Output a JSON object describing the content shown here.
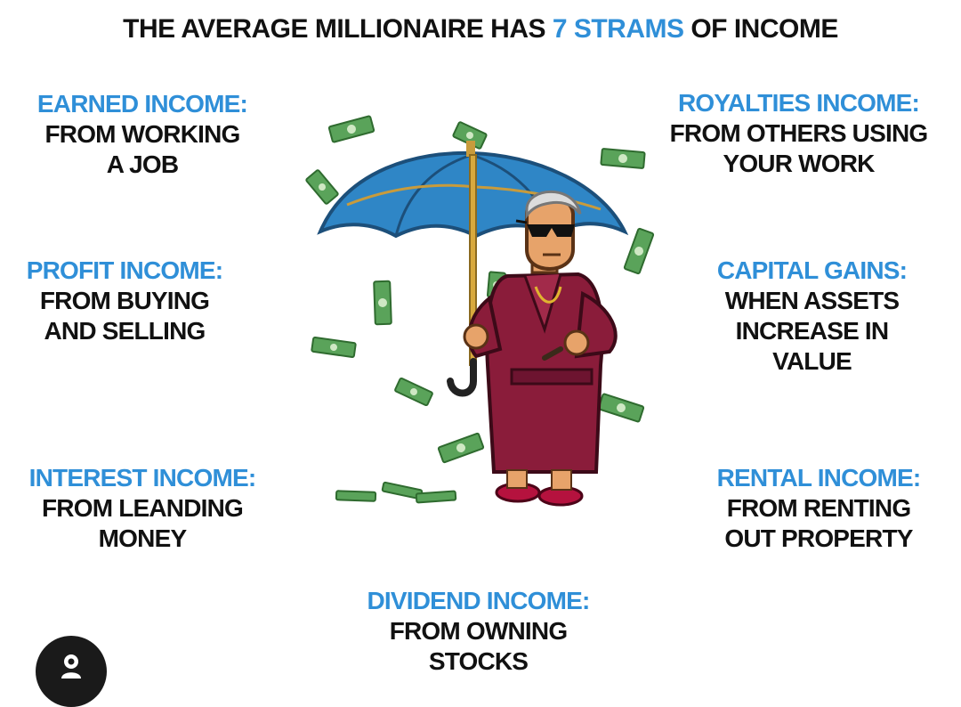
{
  "colors": {
    "accent": "#2f8fd8",
    "text": "#111111"
  },
  "title": {
    "before": "THE AVERAGE MILLIONAIRE HAS ",
    "highlight": "7 STRAMS",
    "after": " OF INCOME"
  },
  "streams": {
    "earned": {
      "heading": "EARNED INCOME:",
      "lines": [
        "FROM WORKING",
        "A JOB"
      ]
    },
    "profit": {
      "heading": "PROFIT INCOME:",
      "lines": [
        "FROM BUYING",
        "AND SELLING"
      ]
    },
    "interest": {
      "heading": "INTEREST INCOME:",
      "lines": [
        "FROM LEANDING",
        "MONEY"
      ]
    },
    "royalties": {
      "heading": "ROYALTIES INCOME:",
      "lines": [
        "FROM OTHERS USING",
        "YOUR WORK"
      ]
    },
    "capital": {
      "heading": "CAPITAL GAINS:",
      "lines": [
        "WHEN ASSETS",
        "INCREASE IN",
        "VALUE"
      ]
    },
    "rental": {
      "heading": "RENTAL INCOME:",
      "lines": [
        "FROM RENTING",
        "OUT PROPERTY"
      ]
    },
    "dividend": {
      "heading": "DIVIDEND INCOME:",
      "lines": [
        "FROM OWNING",
        "STOCKS"
      ]
    }
  },
  "icons": {
    "floating_button": "person-icon",
    "illustration": "millionaire-umbrella-illustration"
  }
}
